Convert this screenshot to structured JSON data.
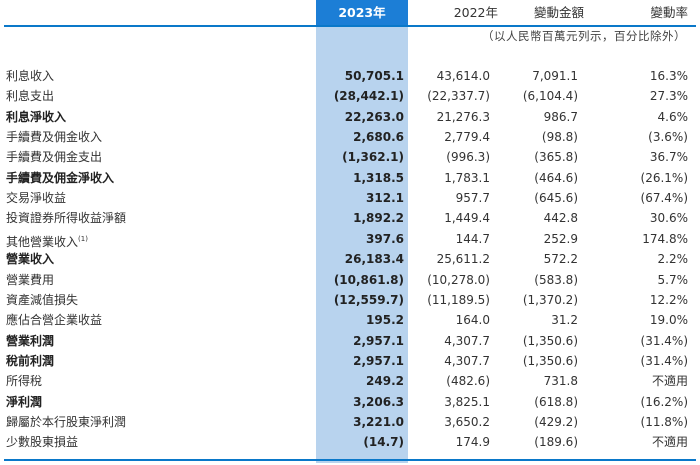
{
  "header": {
    "col_2023": "2023年",
    "col_2022": "2022年",
    "col_change": "變動金額",
    "col_rate": "變動率"
  },
  "units_note": "（以人民幣百萬元列示，百分比除外）",
  "colors": {
    "header_highlight": "#1c7ed6",
    "column_highlight": "#b8d3ee",
    "rule": "#0a78c9"
  },
  "rows": [
    {
      "label": "利息收入",
      "v2023": "50,705.1",
      "v2022": "43,614.0",
      "change": "7,091.1",
      "rate": "16.3%",
      "bold": false
    },
    {
      "label": "利息支出",
      "v2023": "(28,442.1)",
      "v2022": "(22,337.7)",
      "change": "(6,104.4)",
      "rate": "27.3%",
      "bold": false
    },
    {
      "label": "利息淨收入",
      "v2023": "22,263.0",
      "v2022": "21,276.3",
      "change": "986.7",
      "rate": "4.6%",
      "bold": true
    },
    {
      "label": "手續費及佣金收入",
      "v2023": "2,680.6",
      "v2022": "2,779.4",
      "change": "(98.8)",
      "rate": "(3.6%)",
      "bold": false
    },
    {
      "label": "手續費及佣金支出",
      "v2023": "(1,362.1)",
      "v2022": "(996.3)",
      "change": "(365.8)",
      "rate": "36.7%",
      "bold": false
    },
    {
      "label": "手續費及佣金淨收入",
      "v2023": "1,318.5",
      "v2022": "1,783.1",
      "change": "(464.6)",
      "rate": "(26.1%)",
      "bold": true
    },
    {
      "label": "交易淨收益",
      "v2023": "312.1",
      "v2022": "957.7",
      "change": "(645.6)",
      "rate": "(67.4%)",
      "bold": false
    },
    {
      "label": "投資證券所得收益淨額",
      "v2023": "1,892.2",
      "v2022": "1,449.4",
      "change": "442.8",
      "rate": "30.6%",
      "bold": false
    },
    {
      "label": "其他營業收入",
      "label_sup": "(1)",
      "v2023": "397.6",
      "v2022": "144.7",
      "change": "252.9",
      "rate": "174.8%",
      "bold": false
    },
    {
      "label": "營業收入",
      "v2023": "26,183.4",
      "v2022": "25,611.2",
      "change": "572.2",
      "rate": "2.2%",
      "bold": true
    },
    {
      "label": "營業費用",
      "v2023": "(10,861.8)",
      "v2022": "(10,278.0)",
      "change": "(583.8)",
      "rate": "5.7%",
      "bold": false
    },
    {
      "label": "資產減值損失",
      "v2023": "(12,559.7)",
      "v2022": "(11,189.5)",
      "change": "(1,370.2)",
      "rate": "12.2%",
      "bold": false
    },
    {
      "label": "應佔合營企業收益",
      "v2023": "195.2",
      "v2022": "164.0",
      "change": "31.2",
      "rate": "19.0%",
      "bold": false
    },
    {
      "label": "營業利潤",
      "v2023": "2,957.1",
      "v2022": "4,307.7",
      "change": "(1,350.6)",
      "rate": "(31.4%)",
      "bold": true
    },
    {
      "label": "稅前利潤",
      "v2023": "2,957.1",
      "v2022": "4,307.7",
      "change": "(1,350.6)",
      "rate": "(31.4%)",
      "bold": true
    },
    {
      "label": "所得稅",
      "v2023": "249.2",
      "v2022": "(482.6)",
      "change": "731.8",
      "rate": "不適用",
      "bold": false
    },
    {
      "label": "淨利潤",
      "v2023": "3,206.3",
      "v2022": "3,825.1",
      "change": "(618.8)",
      "rate": "(16.2%)",
      "bold": true
    },
    {
      "label": "歸屬於本行股東淨利潤",
      "v2023": "3,221.0",
      "v2022": "3,650.2",
      "change": "(429.2)",
      "rate": "(11.8%)",
      "bold": false
    },
    {
      "label": "少數股東損益",
      "v2023": "(14.7)",
      "v2022": "174.9",
      "change": "(189.6)",
      "rate": "不適用",
      "bold": false
    }
  ]
}
